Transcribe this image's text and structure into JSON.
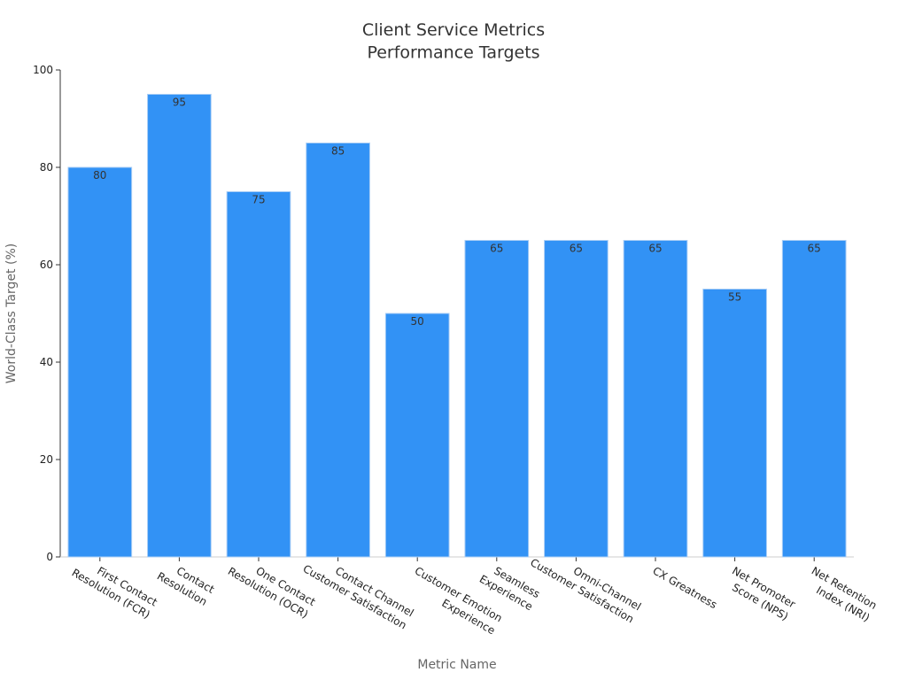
{
  "chart_data": {
    "type": "bar",
    "title": "Client Service Metrics\nPerformance Targets",
    "x_label": "Metric Name",
    "y_label": "World-Class Target (%)",
    "categories": [
      "First Contact\nResolution (FCR)",
      "Contact\nResolution",
      "One Contact\nResolution (OCR)",
      "Contact Channel\nCustomer Satisfaction",
      "Customer Emotion\nExperience",
      "Seamless\nExperience",
      "Omni-Channel\nCustomer Satisfaction",
      "CX Greatness",
      "Net Promoter\nScore (NPS)",
      "Net Retention\nIndex (NRI)"
    ],
    "values": [
      80,
      95,
      75,
      85,
      50,
      65,
      65,
      65,
      55,
      65
    ],
    "color": "#3292f5",
    "ylim": [
      0,
      100
    ],
    "yticks": [
      0,
      20,
      40,
      60,
      80,
      100
    ],
    "grid": false
  }
}
